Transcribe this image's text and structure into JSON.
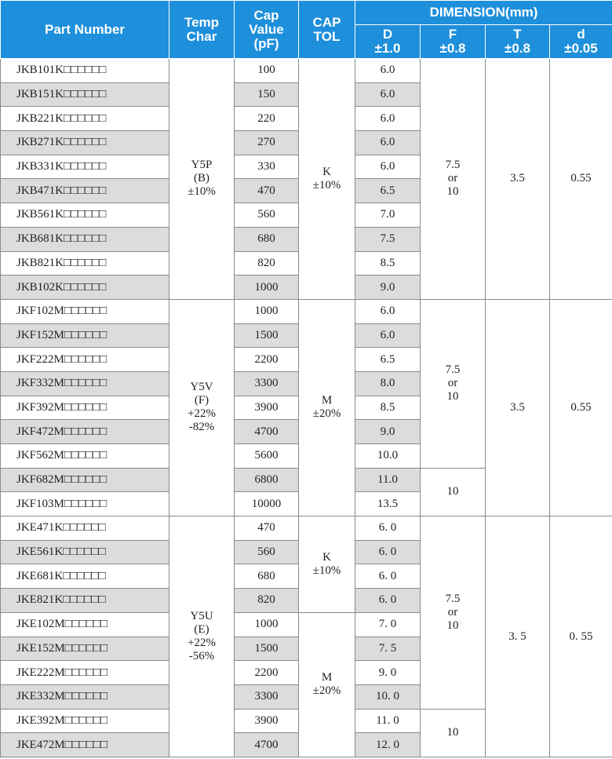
{
  "headers": {
    "part_number": "Part Number",
    "temp_char": "Temp\nChar",
    "cap_value": "Cap\nValue\n(pF)",
    "cap_tol": "CAP\nTOL",
    "dimension": "DIMENSION(mm)",
    "d_upper": "D\n±1.0",
    "f": "F\n±0.8",
    "t": "T\n±0.8",
    "d_lower": "d\n±0.05"
  },
  "groups": [
    {
      "temp_char": "Y5P\n(B)\n±10%",
      "T": "3.5",
      "d": "0.55",
      "tol": [
        {
          "text": "K\n±10%",
          "rows": 10
        }
      ],
      "f": [
        {
          "text": "7.5\nor\n10",
          "rows": 10
        }
      ],
      "rows": [
        {
          "part": "JKB101K□□□□□□",
          "cap": "100",
          "D": "6.0"
        },
        {
          "part": "JKB151K□□□□□□",
          "cap": "150",
          "D": "6.0"
        },
        {
          "part": "JKB221K□□□□□□",
          "cap": "220",
          "D": "6.0"
        },
        {
          "part": "JKB271K□□□□□□",
          "cap": "270",
          "D": "6.0"
        },
        {
          "part": "JKB331K□□□□□□",
          "cap": "330",
          "D": "6.0"
        },
        {
          "part": "JKB471K□□□□□□",
          "cap": "470",
          "D": "6.5"
        },
        {
          "part": "JKB561K□□□□□□",
          "cap": "560",
          "D": "7.0"
        },
        {
          "part": "JKB681K□□□□□□",
          "cap": "680",
          "D": "7.5"
        },
        {
          "part": "JKB821K□□□□□□",
          "cap": "820",
          "D": "8.5"
        },
        {
          "part": "JKB102K□□□□□□",
          "cap": "1000",
          "D": "9.0"
        }
      ]
    },
    {
      "temp_char": "Y5V\n(F)\n+22%\n-82%",
      "T": "3.5",
      "d": "0.55",
      "tol": [
        {
          "text": "M\n±20%",
          "rows": 9
        }
      ],
      "f": [
        {
          "text": "7.5\nor\n10",
          "rows": 7
        },
        {
          "text": "10",
          "rows": 2
        }
      ],
      "rows": [
        {
          "part": "JKF102M□□□□□□",
          "cap": "1000",
          "D": "6.0"
        },
        {
          "part": "JKF152M□□□□□□",
          "cap": "1500",
          "D": "6.0"
        },
        {
          "part": "JKF222M□□□□□□",
          "cap": "2200",
          "D": "6.5"
        },
        {
          "part": "JKF332M□□□□□□",
          "cap": "3300",
          "D": "8.0"
        },
        {
          "part": "JKF392M□□□□□□",
          "cap": "3900",
          "D": "8.5"
        },
        {
          "part": "JKF472M□□□□□□",
          "cap": "4700",
          "D": "9.0"
        },
        {
          "part": "JKF562M□□□□□□",
          "cap": "5600",
          "D": "10.0"
        },
        {
          "part": "JKF682M□□□□□□",
          "cap": "6800",
          "D": "11.0"
        },
        {
          "part": "JKF103M□□□□□□",
          "cap": "10000",
          "D": "13.5"
        }
      ]
    },
    {
      "temp_char": "Y5U\n(E)\n+22%\n-56%",
      "T": "3. 5",
      "d": "0. 55",
      "tol": [
        {
          "text": "K\n±10%",
          "rows": 4
        },
        {
          "text": "M\n±20%",
          "rows": 6
        }
      ],
      "f": [
        {
          "text": "7.5\nor\n10",
          "rows": 8
        },
        {
          "text": "10",
          "rows": 2
        }
      ],
      "rows": [
        {
          "part": "JKE471K□□□□□□",
          "cap": "470",
          "D": "6. 0"
        },
        {
          "part": "JKE561K□□□□□□",
          "cap": "560",
          "D": "6. 0"
        },
        {
          "part": "JKE681K□□□□□□",
          "cap": "680",
          "D": "6. 0"
        },
        {
          "part": "JKE821K□□□□□□",
          "cap": "820",
          "D": "6. 0"
        },
        {
          "part": "JKE102M□□□□□□",
          "cap": "1000",
          "D": "7. 0"
        },
        {
          "part": "JKE152M□□□□□□",
          "cap": "1500",
          "D": "7. 5"
        },
        {
          "part": "JKE222M□□□□□□",
          "cap": "2200",
          "D": "9. 0"
        },
        {
          "part": "JKE332M□□□□□□",
          "cap": "3300",
          "D": "10. 0"
        },
        {
          "part": "JKE392M□□□□□□",
          "cap": "3900",
          "D": "11. 0"
        },
        {
          "part": "JKE472M□□□□□□",
          "cap": "4700",
          "D": "12. 0"
        }
      ]
    }
  ]
}
